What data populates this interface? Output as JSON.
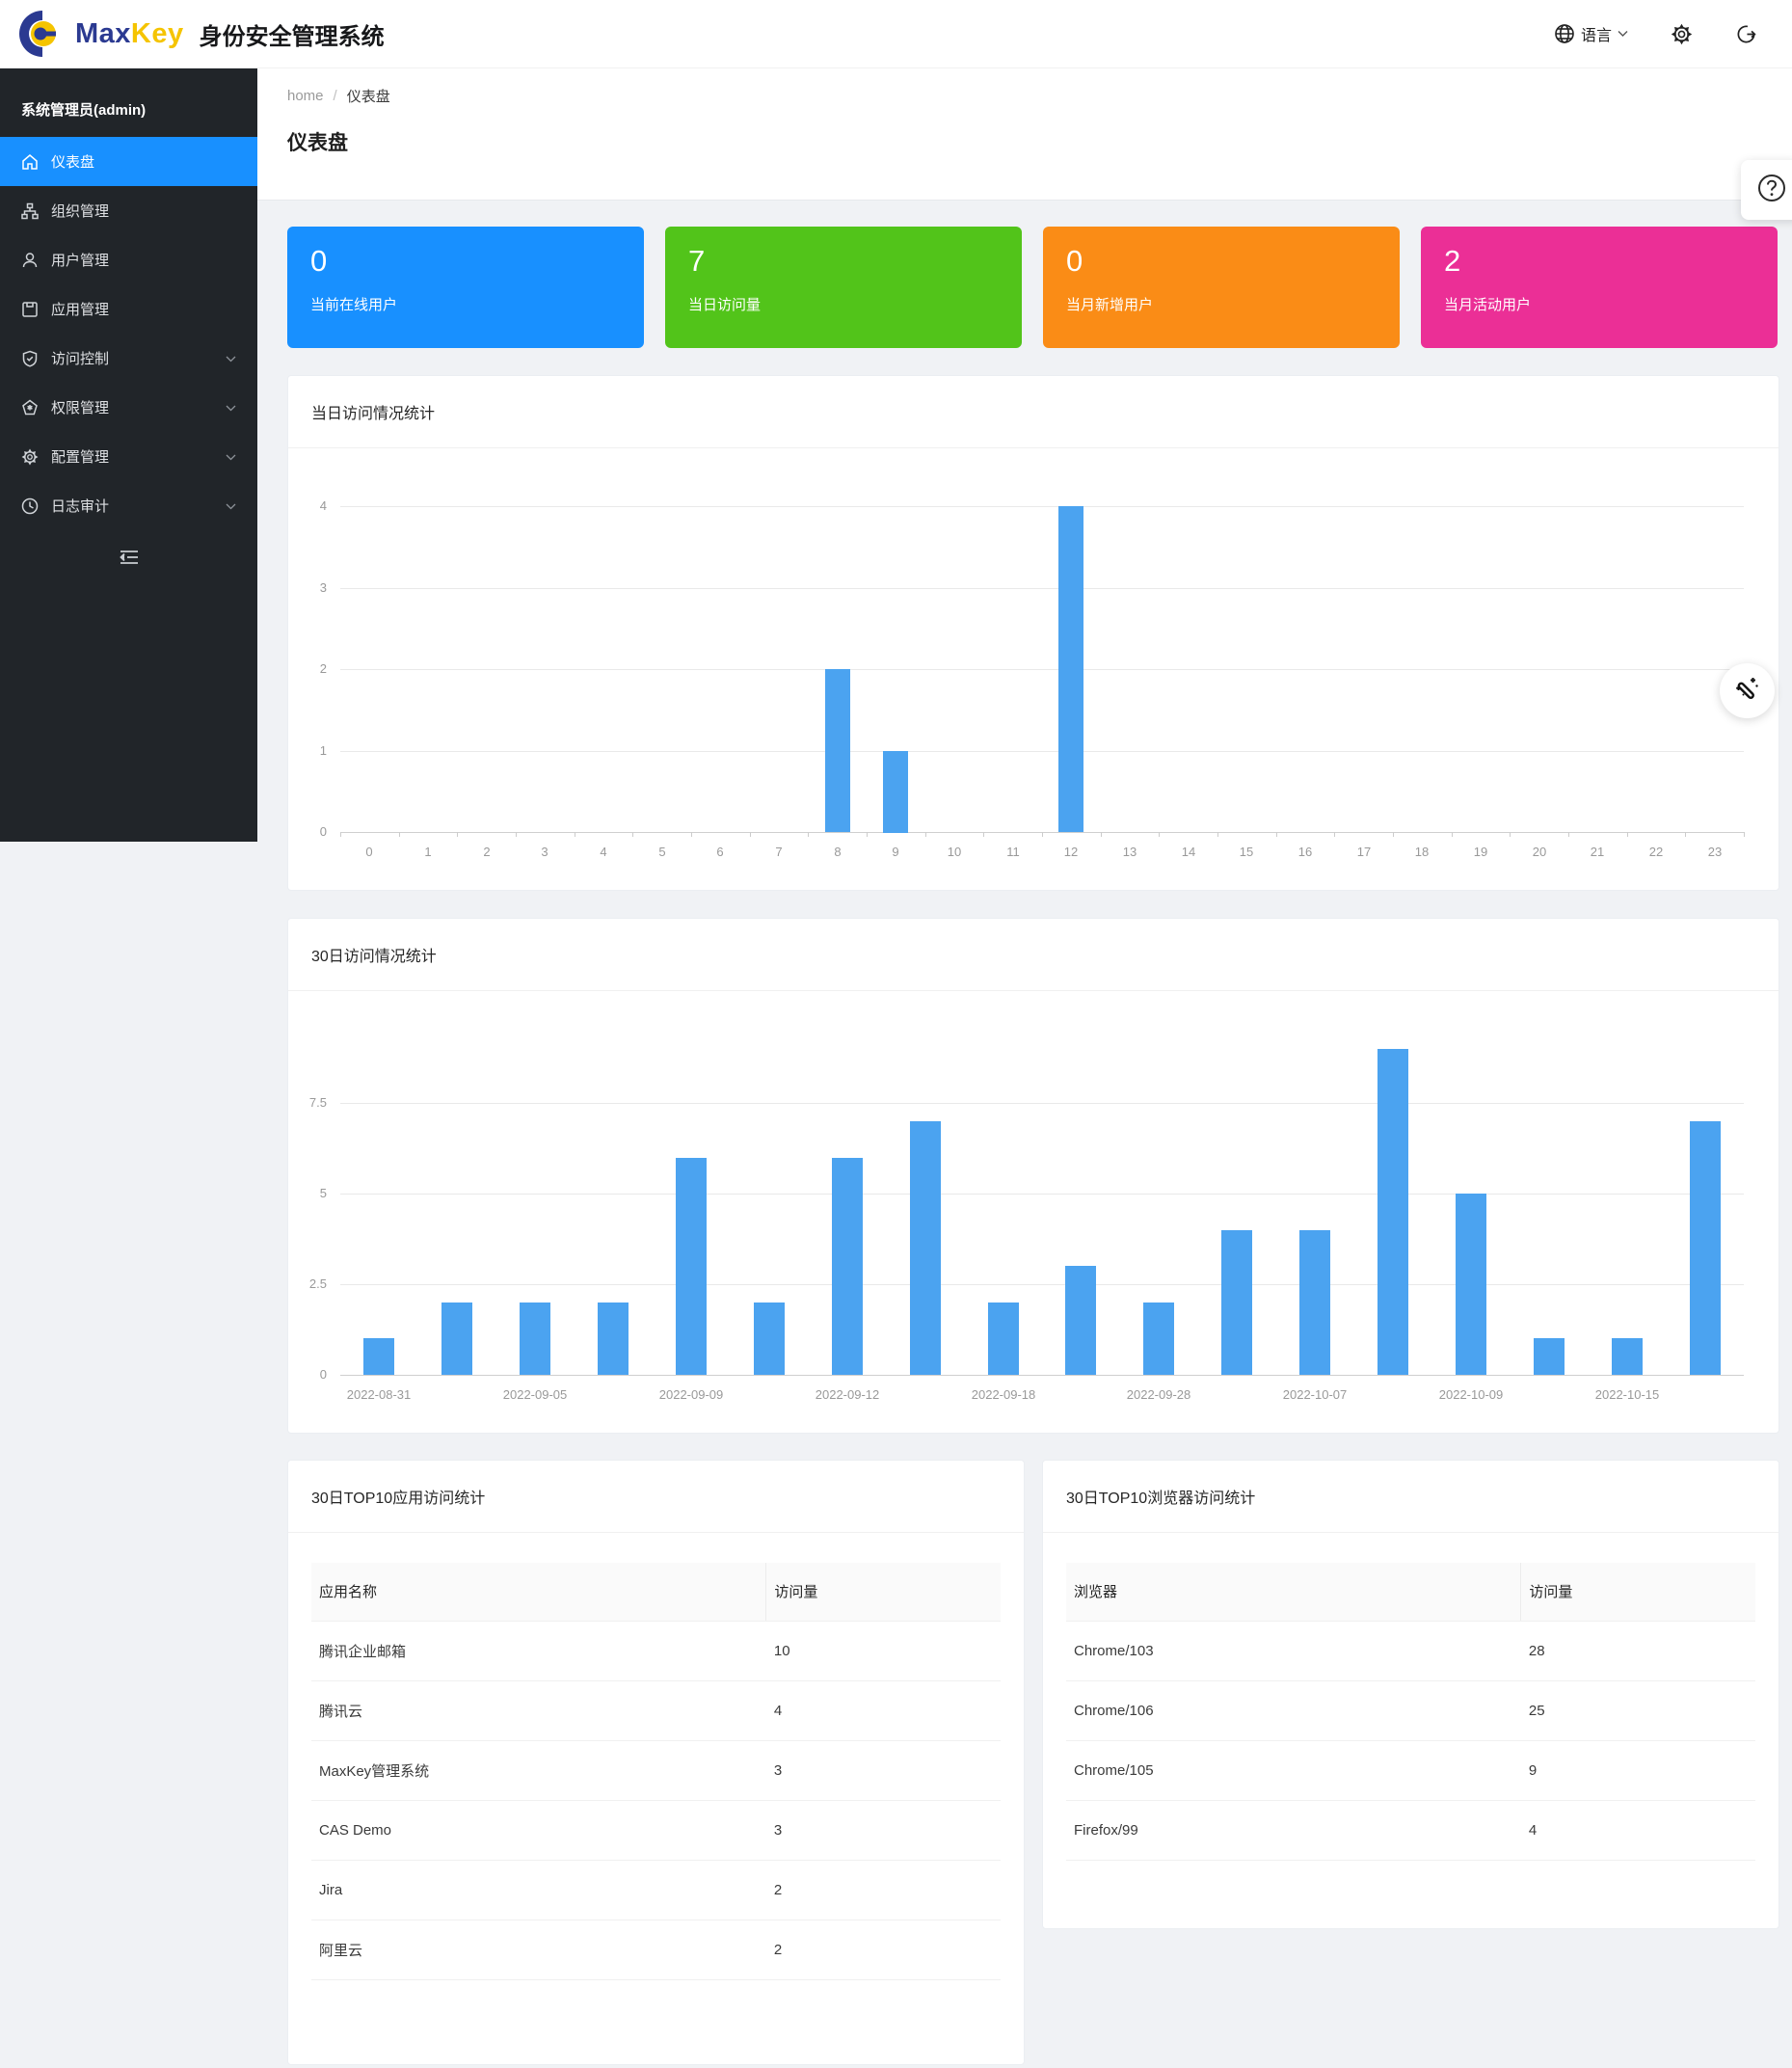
{
  "header": {
    "brand": {
      "max": "Max",
      "key": "Key"
    },
    "app_title": "身份安全管理系统",
    "language_label": "语言",
    "icons": {
      "language": "globe-icon",
      "settings": "gear-icon",
      "logout": "logout-icon"
    }
  },
  "sidebar": {
    "user": "系统管理员(admin)",
    "items": [
      {
        "label": "仪表盘",
        "icon": "home-icon",
        "active": true,
        "has_children": false
      },
      {
        "label": "组织管理",
        "icon": "org-icon",
        "active": false,
        "has_children": false
      },
      {
        "label": "用户管理",
        "icon": "user-icon",
        "active": false,
        "has_children": false
      },
      {
        "label": "应用管理",
        "icon": "app-icon",
        "active": false,
        "has_children": false
      },
      {
        "label": "访问控制",
        "icon": "shield-check-icon",
        "active": false,
        "has_children": true
      },
      {
        "label": "权限管理",
        "icon": "permission-icon",
        "active": false,
        "has_children": true
      },
      {
        "label": "配置管理",
        "icon": "gear-icon",
        "active": false,
        "has_children": true
      },
      {
        "label": "日志审计",
        "icon": "clock-icon",
        "active": false,
        "has_children": true
      }
    ]
  },
  "breadcrumb": {
    "home": "home",
    "separator": "/",
    "current": "仪表盘"
  },
  "page": {
    "title": "仪表盘"
  },
  "stat_cards": [
    {
      "value": "0",
      "label": "当前在线用户",
      "color": "#1890ff"
    },
    {
      "value": "7",
      "label": "当日访问量",
      "color": "#52c41a"
    },
    {
      "value": "0",
      "label": "当月新增用户",
      "color": "#fa8c16"
    },
    {
      "value": "2",
      "label": "当月活动用户",
      "color": "#eb2f96"
    }
  ],
  "chart_data": [
    {
      "type": "bar",
      "title": "当日访问情况统计",
      "x_labels": [
        "0",
        "1",
        "2",
        "3",
        "4",
        "5",
        "6",
        "7",
        "8",
        "9",
        "10",
        "11",
        "12",
        "13",
        "14",
        "15",
        "16",
        "17",
        "18",
        "19",
        "20",
        "21",
        "22",
        "23"
      ],
      "values": [
        0,
        0,
        0,
        0,
        0,
        0,
        0,
        0,
        2,
        1,
        0,
        0,
        4,
        0,
        0,
        0,
        0,
        0,
        0,
        0,
        0,
        0,
        0,
        0
      ],
      "ylim": [
        0,
        4
      ],
      "yticks": [
        0,
        1,
        2,
        3,
        4
      ],
      "bar_color": "#4ba3f0",
      "grid": true,
      "legend": "none",
      "xlabel": "",
      "ylabel": "",
      "axis_boundary_ticks": true
    },
    {
      "type": "bar",
      "title": "30日访问情况统计",
      "x_labels": [
        "2022-08-31",
        "",
        "2022-09-05",
        "",
        "2022-09-09",
        "",
        "2022-09-12",
        "",
        "2022-09-18",
        "",
        "2022-09-28",
        "",
        "2022-10-07",
        "",
        "2022-10-09",
        "",
        "2022-10-15",
        ""
      ],
      "values": [
        1,
        2,
        2,
        2,
        6,
        2,
        6,
        7,
        2,
        3,
        2,
        4,
        4,
        9,
        5,
        1,
        1,
        7
      ],
      "ylim": [
        0,
        9
      ],
      "yticks": [
        0,
        2.5,
        5,
        7.5
      ],
      "bar_color": "#4ba3f0",
      "grid": true,
      "legend": "none",
      "xlabel": "",
      "ylabel": "",
      "axis_boundary_ticks": false
    }
  ],
  "tables": [
    {
      "title": "30日TOP10应用访问统计",
      "columns": [
        "应用名称",
        "访问量"
      ],
      "rows": [
        [
          "腾讯企业邮箱",
          "10"
        ],
        [
          "腾讯云",
          "4"
        ],
        [
          "MaxKey管理系统",
          "3"
        ],
        [
          "CAS Demo",
          "3"
        ],
        [
          "Jira",
          "2"
        ],
        [
          "阿里云",
          "2"
        ]
      ]
    },
    {
      "title": "30日TOP10浏览器访问统计",
      "columns": [
        "浏览器",
        "访问量"
      ],
      "rows": [
        [
          "Chrome/103",
          "28"
        ],
        [
          "Chrome/106",
          "25"
        ],
        [
          "Chrome/105",
          "9"
        ],
        [
          "Firefox/99",
          "4"
        ]
      ]
    }
  ],
  "floating": {
    "help_glyph": "?",
    "help_icon": "question-circle-icon",
    "wand_icon": "magic-wand-icon"
  }
}
